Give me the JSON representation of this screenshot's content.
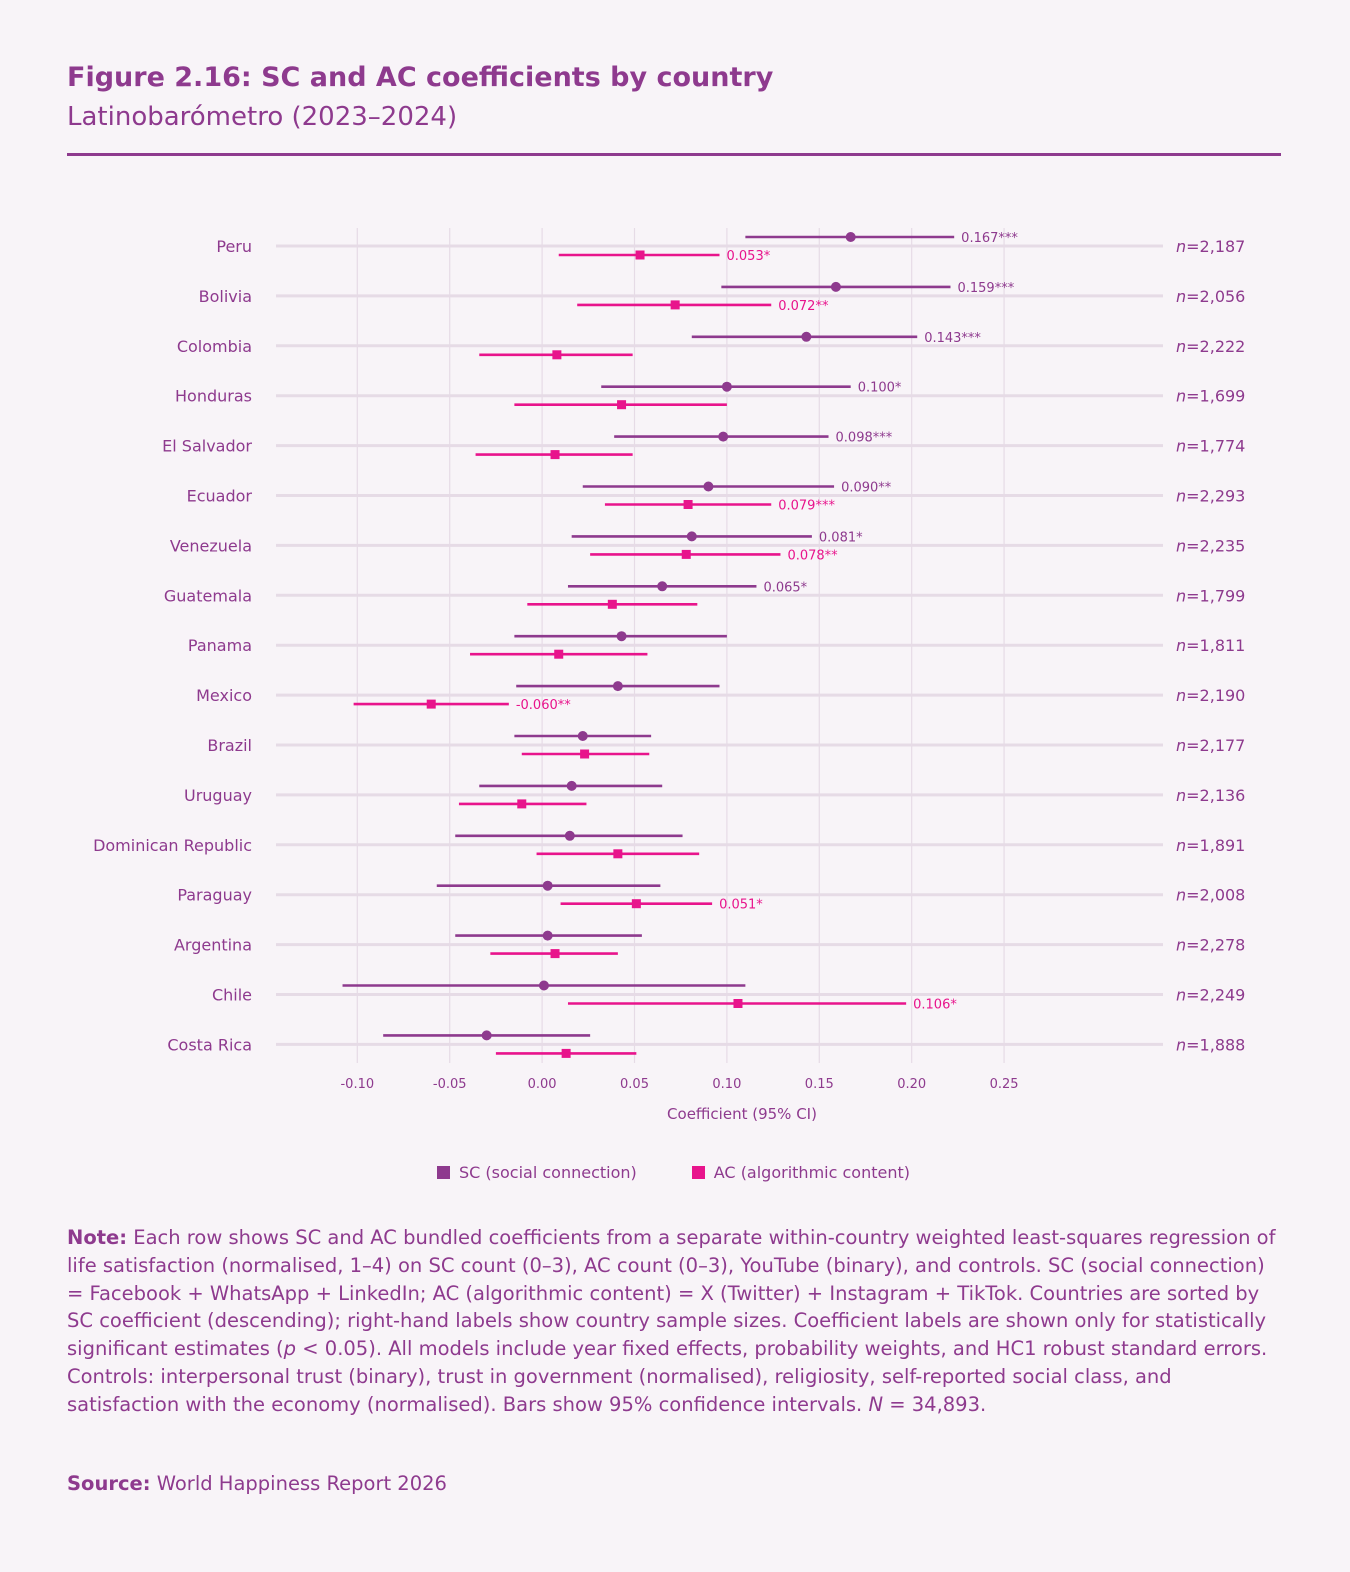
{
  "header": {
    "title": "Figure 2.16: SC and AC coefficients by country",
    "subtitle": "Latinobarómetro (2023–2024)"
  },
  "colors": {
    "sc": "#8e3a8e",
    "ac": "#e8148c",
    "grid": "#e6dbe6",
    "text": "#8e3a8e"
  },
  "chart_data": {
    "type": "forest",
    "xlabel": "Coefficient (95% CI)",
    "xlim": [
      -0.144,
      0.336
    ],
    "xticks": [
      -0.1,
      -0.05,
      0.0,
      0.05,
      0.1,
      0.15,
      0.2,
      0.25
    ],
    "xtick_labels": [
      "-0.10",
      "-0.05",
      "0.00",
      "0.05",
      "0.10",
      "0.15",
      "0.20",
      "0.25"
    ],
    "legend": [
      {
        "key": "sc",
        "label": "SC (social connection)"
      },
      {
        "key": "ac",
        "label": "AC (algorithmic content)"
      }
    ],
    "legend_position": "bottom",
    "rows": [
      {
        "country": "Peru",
        "n_prefix": "n",
        "n": "=2,187",
        "sc": {
          "est": 0.167,
          "lo": 0.11,
          "hi": 0.223,
          "label": "0.167***"
        },
        "ac": {
          "est": 0.053,
          "lo": 0.009,
          "hi": 0.096,
          "label": "0.053*"
        }
      },
      {
        "country": "Bolivia",
        "n_prefix": "n",
        "n": "=2,056",
        "sc": {
          "est": 0.159,
          "lo": 0.097,
          "hi": 0.221,
          "label": "0.159***"
        },
        "ac": {
          "est": 0.072,
          "lo": 0.019,
          "hi": 0.124,
          "label": "0.072**"
        }
      },
      {
        "country": "Colombia",
        "n_prefix": "n",
        "n": "=2,222",
        "sc": {
          "est": 0.143,
          "lo": 0.081,
          "hi": 0.203,
          "label": "0.143***"
        },
        "ac": {
          "est": 0.008,
          "lo": -0.034,
          "hi": 0.049,
          "label": ""
        }
      },
      {
        "country": "Honduras",
        "n_prefix": "n",
        "n": "=1,699",
        "sc": {
          "est": 0.1,
          "lo": 0.032,
          "hi": 0.167,
          "label": "0.100*"
        },
        "ac": {
          "est": 0.043,
          "lo": -0.015,
          "hi": 0.1,
          "label": ""
        }
      },
      {
        "country": "El Salvador",
        "n_prefix": "n",
        "n": "=1,774",
        "sc": {
          "est": 0.098,
          "lo": 0.039,
          "hi": 0.155,
          "label": "0.098***"
        },
        "ac": {
          "est": 0.007,
          "lo": -0.036,
          "hi": 0.049,
          "label": ""
        }
      },
      {
        "country": "Ecuador",
        "n_prefix": "n",
        "n": "=2,293",
        "sc": {
          "est": 0.09,
          "lo": 0.022,
          "hi": 0.158,
          "label": "0.090**"
        },
        "ac": {
          "est": 0.079,
          "lo": 0.034,
          "hi": 0.124,
          "label": "0.079***"
        }
      },
      {
        "country": "Venezuela",
        "n_prefix": "n",
        "n": "=2,235",
        "sc": {
          "est": 0.081,
          "lo": 0.016,
          "hi": 0.146,
          "label": "0.081*"
        },
        "ac": {
          "est": 0.078,
          "lo": 0.026,
          "hi": 0.129,
          "label": "0.078**"
        }
      },
      {
        "country": "Guatemala",
        "n_prefix": "n",
        "n": "=1,799",
        "sc": {
          "est": 0.065,
          "lo": 0.014,
          "hi": 0.116,
          "label": "0.065*"
        },
        "ac": {
          "est": 0.038,
          "lo": -0.008,
          "hi": 0.084,
          "label": ""
        }
      },
      {
        "country": "Panama",
        "n_prefix": "n",
        "n": "=1,811",
        "sc": {
          "est": 0.043,
          "lo": -0.015,
          "hi": 0.1,
          "label": ""
        },
        "ac": {
          "est": 0.009,
          "lo": -0.039,
          "hi": 0.057,
          "label": ""
        }
      },
      {
        "country": "Mexico",
        "n_prefix": "n",
        "n": "=2,190",
        "sc": {
          "est": 0.041,
          "lo": -0.014,
          "hi": 0.096,
          "label": ""
        },
        "ac": {
          "est": -0.06,
          "lo": -0.102,
          "hi": -0.018,
          "label": "-0.060**"
        }
      },
      {
        "country": "Brazil",
        "n_prefix": "n",
        "n": "=2,177",
        "sc": {
          "est": 0.022,
          "lo": -0.015,
          "hi": 0.059,
          "label": ""
        },
        "ac": {
          "est": 0.023,
          "lo": -0.011,
          "hi": 0.058,
          "label": ""
        }
      },
      {
        "country": "Uruguay",
        "n_prefix": "n",
        "n": "=2,136",
        "sc": {
          "est": 0.016,
          "lo": -0.034,
          "hi": 0.065,
          "label": ""
        },
        "ac": {
          "est": -0.011,
          "lo": -0.045,
          "hi": 0.024,
          "label": ""
        }
      },
      {
        "country": "Dominican Republic",
        "n_prefix": "n",
        "n": "=1,891",
        "sc": {
          "est": 0.015,
          "lo": -0.047,
          "hi": 0.076,
          "label": ""
        },
        "ac": {
          "est": 0.041,
          "lo": -0.003,
          "hi": 0.085,
          "label": ""
        }
      },
      {
        "country": "Paraguay",
        "n_prefix": "n",
        "n": "=2,008",
        "sc": {
          "est": 0.003,
          "lo": -0.057,
          "hi": 0.064,
          "label": ""
        },
        "ac": {
          "est": 0.051,
          "lo": 0.01,
          "hi": 0.092,
          "label": "0.051*"
        }
      },
      {
        "country": "Argentina",
        "n_prefix": "n",
        "n": "=2,278",
        "sc": {
          "est": 0.003,
          "lo": -0.047,
          "hi": 0.054,
          "label": ""
        },
        "ac": {
          "est": 0.007,
          "lo": -0.028,
          "hi": 0.041,
          "label": ""
        }
      },
      {
        "country": "Chile",
        "n_prefix": "n",
        "n": "=2,249",
        "sc": {
          "est": 0.001,
          "lo": -0.108,
          "hi": 0.11,
          "label": ""
        },
        "ac": {
          "est": 0.106,
          "lo": 0.014,
          "hi": 0.197,
          "label": "0.106*"
        }
      },
      {
        "country": "Costa Rica",
        "n_prefix": "n",
        "n": "=1,888",
        "sc": {
          "est": -0.03,
          "lo": -0.086,
          "hi": 0.026,
          "label": ""
        },
        "ac": {
          "est": 0.013,
          "lo": -0.025,
          "hi": 0.051,
          "label": ""
        }
      }
    ]
  },
  "note": {
    "label": "Note:",
    "text1": " Each row shows SC and AC bundled coefficients from a separate within-country weighted least-squares regression of life satisfaction (normalised, 1–4) on SC count (0–3), AC count (0–3), YouTube (binary), and controls. SC (social connection) = Facebook + WhatsApp + LinkedIn; AC (algorithmic content) = X (Twitter) + Instagram + TikTok. Countries are sorted by SC coefficient (descending); right-hand labels show country sample sizes. Coefficient labels are shown only for statistically significant estimates (",
    "p": "p",
    "text2": " < 0.05). All models include year fixed effects, probability weights, and HC1 robust standard errors. Controls: interpersonal trust (binary), trust in government (normalised), religiosity, self-reported social class, and satisfaction with the economy (normalised). Bars show 95% confidence intervals. ",
    "N": "N",
    "text3": " = 34,893."
  },
  "source": {
    "label": "Source:",
    "text": " World Happiness Report 2026"
  }
}
